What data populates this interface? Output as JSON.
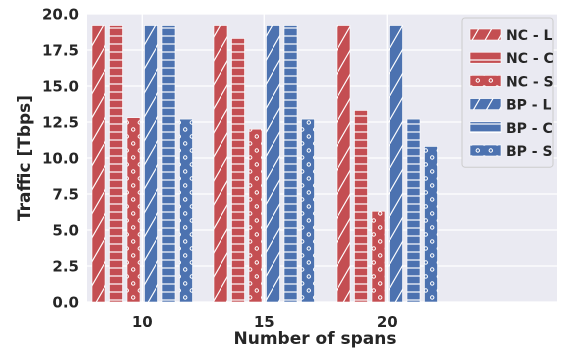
{
  "chart_data": {
    "type": "bar",
    "categories": [
      "10",
      "15",
      "20"
    ],
    "xlabel": "Number of spans",
    "ylabel": "Traffic [Tbps]",
    "ylim": [
      0,
      20
    ],
    "yticks": [
      "0.0",
      "2.5",
      "5.0",
      "7.5",
      "10.0",
      "12.5",
      "15.0",
      "17.5",
      "20.0"
    ],
    "grid": true,
    "legend_position": "top-right",
    "series": [
      {
        "name": "NC - L",
        "values": [
          19.2,
          19.2,
          19.2
        ],
        "color": "#c44e52",
        "pattern": "diagonal"
      },
      {
        "name": "NC - C",
        "values": [
          19.2,
          18.3,
          13.3
        ],
        "color": "#c44e52",
        "pattern": "horizontal"
      },
      {
        "name": "NC - S",
        "values": [
          12.8,
          12.0,
          6.3
        ],
        "color": "#c44e52",
        "pattern": "circles"
      },
      {
        "name": "BP - L",
        "values": [
          19.2,
          19.2,
          19.2
        ],
        "color": "#4c72b0",
        "pattern": "diagonal"
      },
      {
        "name": "BP - C",
        "values": [
          19.2,
          19.2,
          12.7
        ],
        "color": "#4c72b0",
        "pattern": "horizontal"
      },
      {
        "name": "BP - S",
        "values": [
          12.7,
          12.7,
          10.8
        ],
        "color": "#4c72b0",
        "pattern": "circles"
      }
    ]
  }
}
